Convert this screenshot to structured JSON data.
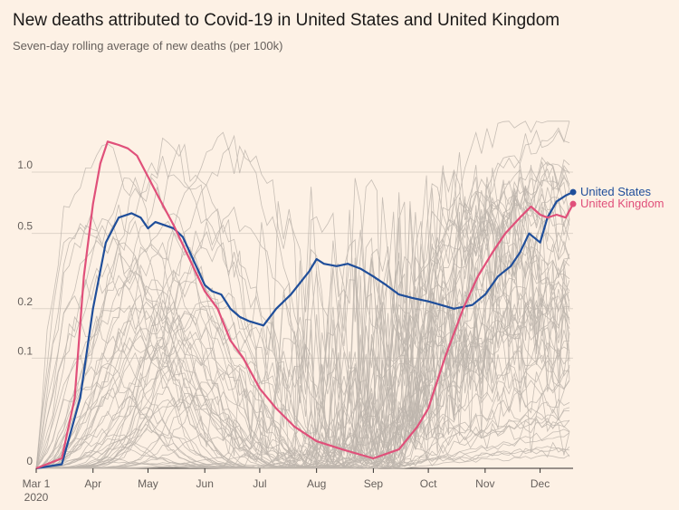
{
  "chart_data": {
    "type": "line",
    "title": "New deaths attributed to Covid-19 in United States and United Kingdom",
    "subtitle": "Seven-day rolling average of new deaths (per 100k)",
    "x_axis": {
      "start": "2020-03-01",
      "end": "2020-12-19",
      "ticks": [
        {
          "date": "2020-03-01",
          "label": "Mar 1",
          "label2": "2020"
        },
        {
          "date": "2020-04-01",
          "label": "Apr"
        },
        {
          "date": "2020-05-01",
          "label": "May"
        },
        {
          "date": "2020-06-01",
          "label": "Jun"
        },
        {
          "date": "2020-07-01",
          "label": "Jul"
        },
        {
          "date": "2020-08-01",
          "label": "Aug"
        },
        {
          "date": "2020-09-01",
          "label": "Sep"
        },
        {
          "date": "2020-10-01",
          "label": "Oct"
        },
        {
          "date": "2020-11-01",
          "label": "Nov"
        },
        {
          "date": "2020-12-01",
          "label": "Dec"
        }
      ]
    },
    "y_axis": {
      "scale": "symlog",
      "ylim": [
        0,
        1.5
      ],
      "ticks": [
        {
          "value": 0,
          "label": "0"
        },
        {
          "value": 0.1,
          "label": "0.1"
        },
        {
          "value": 0.2,
          "label": "0.2"
        },
        {
          "value": 0.5,
          "label": "0.5"
        },
        {
          "value": 1.0,
          "label": "1.0"
        }
      ],
      "gridlines": true
    },
    "background_series": {
      "count": 60,
      "color": "#bdb5ad"
    },
    "series": [
      {
        "name": "United States",
        "color": "#1f4e9a",
        "points": [
          [
            "2020-03-01",
            0
          ],
          [
            "2020-03-15",
            0.002
          ],
          [
            "2020-03-25",
            0.05
          ],
          [
            "2020-04-01",
            0.2
          ],
          [
            "2020-04-08",
            0.45
          ],
          [
            "2020-04-15",
            0.6
          ],
          [
            "2020-04-22",
            0.63
          ],
          [
            "2020-04-27",
            0.6
          ],
          [
            "2020-05-01",
            0.53
          ],
          [
            "2020-05-05",
            0.57
          ],
          [
            "2020-05-10",
            0.55
          ],
          [
            "2020-05-15",
            0.53
          ],
          [
            "2020-05-20",
            0.48
          ],
          [
            "2020-05-25",
            0.38
          ],
          [
            "2020-06-01",
            0.27
          ],
          [
            "2020-06-05",
            0.25
          ],
          [
            "2020-06-10",
            0.24
          ],
          [
            "2020-06-15",
            0.2
          ],
          [
            "2020-06-20",
            0.18
          ],
          [
            "2020-06-25",
            0.17
          ],
          [
            "2020-07-03",
            0.16
          ],
          [
            "2020-07-10",
            0.2
          ],
          [
            "2020-07-18",
            0.24
          ],
          [
            "2020-07-28",
            0.32
          ],
          [
            "2020-08-01",
            0.37
          ],
          [
            "2020-08-05",
            0.35
          ],
          [
            "2020-08-12",
            0.34
          ],
          [
            "2020-08-18",
            0.35
          ],
          [
            "2020-08-25",
            0.33
          ],
          [
            "2020-09-01",
            0.3
          ],
          [
            "2020-09-08",
            0.27
          ],
          [
            "2020-09-15",
            0.24
          ],
          [
            "2020-09-22",
            0.23
          ],
          [
            "2020-10-01",
            0.22
          ],
          [
            "2020-10-08",
            0.21
          ],
          [
            "2020-10-15",
            0.2
          ],
          [
            "2020-10-20",
            0.205
          ],
          [
            "2020-10-25",
            0.21
          ],
          [
            "2020-11-01",
            0.24
          ],
          [
            "2020-11-08",
            0.3
          ],
          [
            "2020-11-15",
            0.34
          ],
          [
            "2020-11-20",
            0.4
          ],
          [
            "2020-11-25",
            0.5
          ],
          [
            "2020-12-01",
            0.45
          ],
          [
            "2020-12-05",
            0.6
          ],
          [
            "2020-12-10",
            0.72
          ],
          [
            "2020-12-15",
            0.77
          ],
          [
            "2020-12-19",
            0.8
          ]
        ]
      },
      {
        "name": "United Kingdom",
        "color": "#e0507a",
        "points": [
          [
            "2020-03-01",
            0
          ],
          [
            "2020-03-15",
            0.005
          ],
          [
            "2020-03-22",
            0.05
          ],
          [
            "2020-03-27",
            0.3
          ],
          [
            "2020-04-01",
            0.7
          ],
          [
            "2020-04-05",
            1.1
          ],
          [
            "2020-04-09",
            1.4
          ],
          [
            "2020-04-15",
            1.35
          ],
          [
            "2020-04-20",
            1.3
          ],
          [
            "2020-04-25",
            1.2
          ],
          [
            "2020-05-01",
            0.95
          ],
          [
            "2020-05-07",
            0.75
          ],
          [
            "2020-05-15",
            0.55
          ],
          [
            "2020-05-22",
            0.4
          ],
          [
            "2020-06-01",
            0.25
          ],
          [
            "2020-06-08",
            0.2
          ],
          [
            "2020-06-15",
            0.13
          ],
          [
            "2020-06-22",
            0.1
          ],
          [
            "2020-07-01",
            0.06
          ],
          [
            "2020-07-10",
            0.04
          ],
          [
            "2020-07-20",
            0.025
          ],
          [
            "2020-08-01",
            0.015
          ],
          [
            "2020-08-15",
            0.01
          ],
          [
            "2020-09-01",
            0.005
          ],
          [
            "2020-09-15",
            0.01
          ],
          [
            "2020-09-25",
            0.025
          ],
          [
            "2020-10-01",
            0.04
          ],
          [
            "2020-10-10",
            0.1
          ],
          [
            "2020-10-20",
            0.2
          ],
          [
            "2020-10-28",
            0.3
          ],
          [
            "2020-11-05",
            0.4
          ],
          [
            "2020-11-12",
            0.5
          ],
          [
            "2020-11-20",
            0.6
          ],
          [
            "2020-11-26",
            0.68
          ],
          [
            "2020-12-01",
            0.62
          ],
          [
            "2020-12-05",
            0.6
          ],
          [
            "2020-12-10",
            0.62
          ],
          [
            "2020-12-15",
            0.6
          ],
          [
            "2020-12-19",
            0.7
          ]
        ]
      }
    ]
  }
}
